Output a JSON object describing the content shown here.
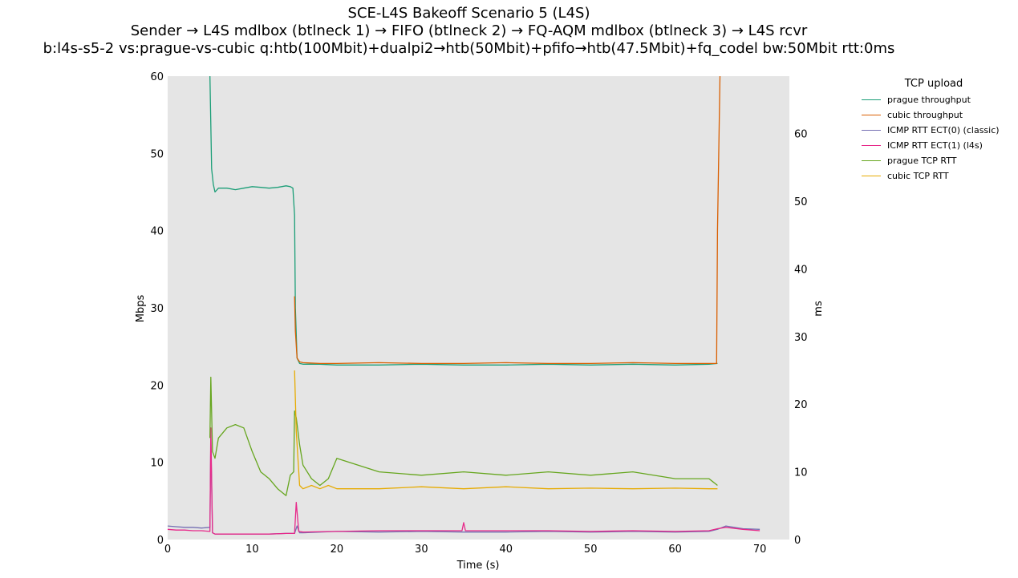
{
  "chart_data": {
    "type": "line",
    "title": "SCE-L4S Bakeoff Scenario 5 (L4S)",
    "subtitle": [
      "Sender → L4S mdlbox (btlneck 1) → FIFO (btlneck 2) → FQ-AQM mdlbox (btlneck 3) → L4S rcvr",
      "b:l4s-s5-2 vs:prague-vs-cubic q:htb(100Mbit)+dualpi2→htb(50Mbit)+pfifo→htb(47.5Mbit)+fq_codel bw:50Mbit rtt:0ms"
    ],
    "xlabel": "Time (s)",
    "ylabel": "Mbps",
    "y2label": "ms",
    "xlim": [
      0,
      73.5
    ],
    "ylim": [
      0,
      60
    ],
    "y2lim": [
      0,
      68.5
    ],
    "xticks": [
      "0",
      "10",
      "20",
      "30",
      "40",
      "50",
      "60",
      "70"
    ],
    "yticks": [
      "0",
      "10",
      "20",
      "30",
      "40",
      "50",
      "60"
    ],
    "y2ticks": [
      "0",
      "10",
      "20",
      "30",
      "40",
      "50",
      "60"
    ],
    "grid": false,
    "legend_title": "TCP upload",
    "legend_position": "outside-top-right",
    "series": [
      {
        "name": "prague throughput",
        "axis": "left",
        "color": "#1b9e77",
        "x": [
          5.0,
          5.2,
          5.4,
          5.6,
          6,
          7,
          8,
          9,
          10,
          11,
          12,
          13,
          14,
          14.5,
          14.8,
          15.0,
          15.1,
          15.3,
          15.6,
          16,
          18,
          20,
          25,
          30,
          35,
          40,
          45,
          50,
          55,
          60,
          64,
          65.0
        ],
        "y": [
          60,
          48,
          46,
          45,
          45.5,
          45.5,
          45.3,
          45.5,
          45.7,
          45.6,
          45.5,
          45.6,
          45.8,
          45.7,
          45.5,
          42,
          30,
          23.5,
          22.8,
          22.7,
          22.7,
          22.6,
          22.6,
          22.7,
          22.6,
          22.6,
          22.7,
          22.6,
          22.7,
          22.6,
          22.7,
          22.8
        ]
      },
      {
        "name": "cubic throughput",
        "axis": "left",
        "color": "#d95f02",
        "x": [
          15.0,
          15.1,
          15.3,
          15.6,
          16,
          18,
          20,
          25,
          30,
          35,
          40,
          45,
          50,
          55,
          60,
          64,
          64.9,
          65.0,
          65.3
        ],
        "y": [
          31.5,
          27,
          23.5,
          23.0,
          22.9,
          22.8,
          22.8,
          22.9,
          22.8,
          22.8,
          22.9,
          22.8,
          22.8,
          22.9,
          22.8,
          22.8,
          22.8,
          40,
          60
        ]
      },
      {
        "name": "ICMP RTT ECT(0) (classic)",
        "axis": "right",
        "color": "#7570b3",
        "x": [
          0,
          1,
          2,
          3,
          4,
          5.0,
          5.1,
          5.3,
          5.6,
          6,
          8,
          10,
          12,
          14,
          15,
          15.3,
          15.6,
          16,
          20,
          25,
          30,
          35,
          40,
          45,
          50,
          55,
          60,
          64,
          65,
          66,
          68,
          70
        ],
        "y": [
          2.0,
          1.9,
          1.8,
          1.8,
          1.7,
          1.8,
          15.0,
          1.0,
          0.8,
          0.8,
          0.8,
          0.8,
          0.8,
          0.9,
          0.9,
          2.0,
          1.0,
          1.0,
          1.2,
          1.1,
          1.2,
          1.1,
          1.1,
          1.2,
          1.1,
          1.2,
          1.1,
          1.2,
          1.5,
          2.0,
          1.6,
          1.5
        ]
      },
      {
        "name": "ICMP RTT ECT(1) (l4s)",
        "axis": "right",
        "color": "#e7298a",
        "x": [
          0,
          1,
          2,
          3,
          4,
          5.0,
          5.1,
          5.3,
          5.6,
          6,
          8,
          10,
          12,
          14,
          15,
          15.2,
          15.5,
          16,
          20,
          25,
          30,
          34.8,
          35,
          35.2,
          40,
          45,
          50,
          55,
          60,
          64,
          65,
          66,
          68,
          70
        ],
        "y": [
          1.5,
          1.4,
          1.4,
          1.3,
          1.3,
          1.2,
          16.5,
          1.0,
          0.8,
          0.8,
          0.8,
          0.8,
          0.8,
          0.9,
          0.9,
          5.5,
          1.2,
          1.1,
          1.2,
          1.3,
          1.3,
          1.3,
          2.5,
          1.3,
          1.3,
          1.3,
          1.2,
          1.3,
          1.2,
          1.3,
          1.6,
          1.8,
          1.5,
          1.3
        ]
      },
      {
        "name": "prague TCP RTT",
        "axis": "right",
        "color": "#66a61e",
        "x": [
          5.0,
          5.1,
          5.3,
          5.6,
          6,
          7,
          8,
          9,
          10,
          11,
          12,
          13,
          14,
          14.5,
          14.9,
          15.0,
          15.2,
          15.6,
          16,
          17,
          18,
          19,
          20,
          25,
          30,
          35,
          40,
          45,
          50,
          55,
          60,
          64,
          65.0
        ],
        "y": [
          15,
          24,
          13,
          12,
          15,
          16.5,
          17,
          16.5,
          13,
          10,
          9,
          7.5,
          6.5,
          9.5,
          10,
          19,
          18,
          14,
          11,
          9,
          8,
          9,
          12,
          10,
          9.5,
          10,
          9.5,
          10,
          9.5,
          10,
          9,
          9,
          8
        ]
      },
      {
        "name": "cubic TCP RTT",
        "axis": "right",
        "color": "#e6ab02",
        "x": [
          15.0,
          15.2,
          15.6,
          16,
          17,
          18,
          19,
          20,
          25,
          30,
          35,
          40,
          45,
          50,
          55,
          60,
          64,
          65.0
        ],
        "y": [
          25,
          16,
          8,
          7.5,
          8,
          7.5,
          8,
          7.5,
          7.5,
          7.8,
          7.5,
          7.8,
          7.5,
          7.6,
          7.5,
          7.6,
          7.5,
          7.5
        ]
      }
    ]
  }
}
